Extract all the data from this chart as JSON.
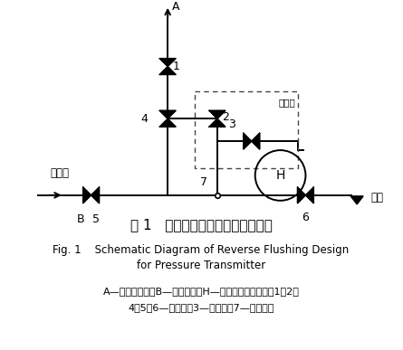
{
  "title_cn": "图 1   压力变送器反冲水设计示意图",
  "title_en_line1": "Fig. 1    Schematic Diagram of Reverse Flushing Design",
  "title_en_line2": "for Pressure Transmitter",
  "caption_line1": "A—接过程压力；B—接反冲水；H—压力变送器高压侧；1、2、",
  "caption_line2": "4、5、6—截止阀；3—排污阀；7—排污丝堵",
  "bg_color": "#ffffff",
  "line_color": "#000000"
}
